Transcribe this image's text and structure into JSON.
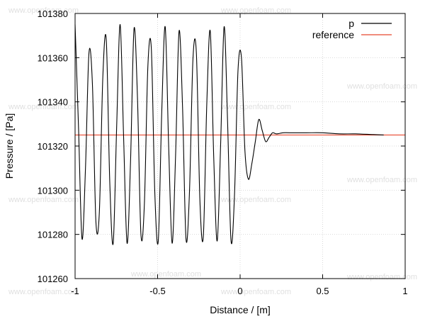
{
  "watermark": "www.openfoam.com",
  "chart_data": {
    "type": "line",
    "xlabel": "Distance / [m]",
    "ylabel": "Pressure / [Pa]",
    "xlim": [
      -1,
      1
    ],
    "ylim": [
      101260,
      101380
    ],
    "x_ticks": [
      -1,
      -0.5,
      0,
      0.5,
      1
    ],
    "x_tick_labels": [
      "-1",
      "-0.5",
      "0",
      "0.5",
      "1"
    ],
    "y_ticks": [
      101260,
      101280,
      101300,
      101320,
      101340,
      101360,
      101380
    ],
    "y_tick_labels": [
      "101260",
      "101280",
      "101300",
      "101320",
      "101340",
      "101360",
      "101380"
    ],
    "grid": true,
    "legend_position": "top-right",
    "series": [
      {
        "name": "p",
        "color": "#000000",
        "x": [
          -1.0,
          -0.979,
          -0.958,
          -0.937,
          -0.916,
          -0.895,
          -0.874,
          -0.853,
          -0.832,
          -0.811,
          -0.79,
          -0.769,
          -0.748,
          -0.727,
          -0.706,
          -0.685,
          -0.664,
          -0.643,
          -0.622,
          -0.601,
          -0.58,
          -0.559,
          -0.538,
          -0.517,
          -0.496,
          -0.475,
          -0.454,
          -0.433,
          -0.412,
          -0.391,
          -0.37,
          -0.349,
          -0.328,
          -0.307,
          -0.286,
          -0.265,
          -0.244,
          -0.223,
          -0.202,
          -0.181,
          -0.16,
          -0.139,
          -0.118,
          -0.097,
          -0.076,
          -0.055,
          -0.034,
          -0.013,
          0.008,
          0.029,
          0.05,
          0.071,
          0.092,
          0.113,
          0.134,
          0.155,
          0.176,
          0.197,
          0.22,
          0.26,
          0.3,
          0.4,
          0.5,
          0.6,
          0.7,
          0.8,
          0.87
        ],
        "y": [
          101375,
          101328,
          101278,
          101310,
          101362,
          101348,
          101286,
          101290,
          101351,
          101368,
          101304,
          101276,
          101329,
          101375,
          101324,
          101276,
          101313,
          101373,
          101342,
          101280,
          101294,
          101356,
          101364,
          101299,
          101277,
          101335,
          101374,
          101320,
          101276,
          101316,
          101372,
          101338,
          101278,
          101299,
          101359,
          101362,
          101296,
          101279,
          101339,
          101372,
          101315,
          101277,
          101321,
          101374,
          101331,
          101277,
          101298,
          101354,
          101360,
          101318,
          101305,
          101312,
          101322,
          101332,
          101327,
          101322,
          101324,
          101326,
          101325.5,
          101326,
          101326,
          101326,
          101326,
          101325.5,
          101325.5,
          101325.2,
          101325
        ]
      },
      {
        "name": "reference",
        "color": "#e8472e",
        "x": [
          -1.0,
          1.0
        ],
        "y": [
          101325,
          101325
        ]
      }
    ]
  }
}
